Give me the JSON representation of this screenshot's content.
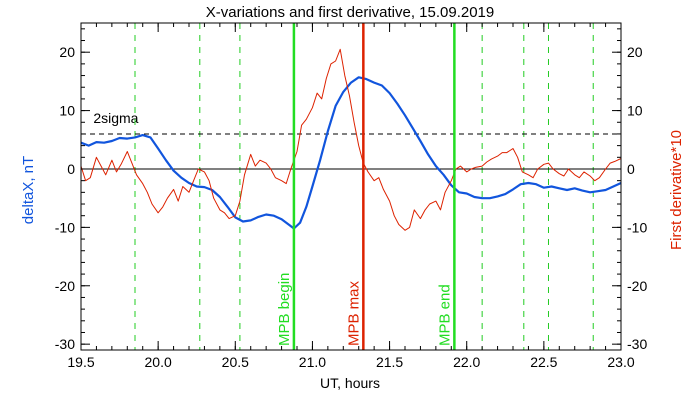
{
  "chart_data": {
    "type": "line",
    "title": "X-variations and first derivative, 15.09.2019",
    "xlabel": "UT, hours",
    "ylabel_left": "deltaX, nT",
    "ylabel_right": "First derivative*10",
    "xlim": [
      19.5,
      23.0
    ],
    "ylim": [
      -31,
      25
    ],
    "x_ticks": [
      "19.5",
      "20.0",
      "20.5",
      "21.0",
      "21.5",
      "22.0",
      "22.5",
      "23.0"
    ],
    "y_ticks": [
      "20",
      "10",
      "0",
      "-10",
      "-20",
      "-30"
    ],
    "sigma_label": "2sigma",
    "sigma_level": 6,
    "zero_level": 0,
    "dashed_verticals": [
      19.85,
      20.27,
      20.53,
      22.1,
      22.37,
      22.53,
      22.82
    ],
    "markers": [
      {
        "label": "MPB begin",
        "x": 20.88,
        "color": "#22dd22"
      },
      {
        "label": "MPB max",
        "x": 21.33,
        "color": "#dd2200"
      },
      {
        "label": "MPB end",
        "x": 21.92,
        "color": "#22dd22"
      }
    ],
    "series": [
      {
        "name": "deltaX, nT",
        "color": "#1155dd",
        "points": [
          [
            19.5,
            4.5
          ],
          [
            19.55,
            4.0
          ],
          [
            19.6,
            4.6
          ],
          [
            19.65,
            4.5
          ],
          [
            19.7,
            4.8
          ],
          [
            19.75,
            5.3
          ],
          [
            19.8,
            5.2
          ],
          [
            19.85,
            5.4
          ],
          [
            19.9,
            5.8
          ],
          [
            19.95,
            5.4
          ],
          [
            20.0,
            3.5
          ],
          [
            20.05,
            1.5
          ],
          [
            20.1,
            -0.3
          ],
          [
            20.15,
            -1.5
          ],
          [
            20.2,
            -2.4
          ],
          [
            20.25,
            -3.0
          ],
          [
            20.3,
            -3.1
          ],
          [
            20.35,
            -3.6
          ],
          [
            20.4,
            -4.8
          ],
          [
            20.45,
            -6.5
          ],
          [
            20.5,
            -8.3
          ],
          [
            20.55,
            -9.0
          ],
          [
            20.6,
            -8.8
          ],
          [
            20.65,
            -8.2
          ],
          [
            20.7,
            -7.8
          ],
          [
            20.75,
            -8.0
          ],
          [
            20.8,
            -8.6
          ],
          [
            20.85,
            -9.6
          ],
          [
            20.88,
            -10.2
          ],
          [
            20.92,
            -9.2
          ],
          [
            20.96,
            -6.5
          ],
          [
            21.0,
            -3.0
          ],
          [
            21.05,
            1.5
          ],
          [
            21.1,
            6.5
          ],
          [
            21.15,
            10.8
          ],
          [
            21.2,
            13.2
          ],
          [
            21.25,
            14.8
          ],
          [
            21.3,
            15.7
          ],
          [
            21.35,
            15.4
          ],
          [
            21.4,
            14.8
          ],
          [
            21.45,
            14.3
          ],
          [
            21.5,
            13.0
          ],
          [
            21.55,
            11.2
          ],
          [
            21.6,
            9.2
          ],
          [
            21.65,
            7.0
          ],
          [
            21.7,
            4.8
          ],
          [
            21.75,
            2.5
          ],
          [
            21.8,
            0.5
          ],
          [
            21.85,
            -1.0
          ],
          [
            21.9,
            -2.8
          ],
          [
            21.95,
            -4.0
          ],
          [
            22.0,
            -4.2
          ],
          [
            22.05,
            -4.8
          ],
          [
            22.1,
            -5.0
          ],
          [
            22.15,
            -5.0
          ],
          [
            22.2,
            -4.7
          ],
          [
            22.25,
            -4.3
          ],
          [
            22.3,
            -3.5
          ],
          [
            22.35,
            -2.6
          ],
          [
            22.4,
            -2.4
          ],
          [
            22.45,
            -2.6
          ],
          [
            22.5,
            -3.2
          ],
          [
            22.55,
            -3.0
          ],
          [
            22.6,
            -3.3
          ],
          [
            22.65,
            -3.6
          ],
          [
            22.7,
            -3.3
          ],
          [
            22.75,
            -3.7
          ],
          [
            22.8,
            -4.0
          ],
          [
            22.85,
            -3.8
          ],
          [
            22.9,
            -3.6
          ],
          [
            22.95,
            -3.0
          ],
          [
            23.0,
            -2.4
          ]
        ]
      },
      {
        "name": "First derivative*10",
        "color": "#dd2200",
        "points": [
          [
            19.5,
            0.5
          ],
          [
            19.53,
            -2.0
          ],
          [
            19.56,
            -1.5
          ],
          [
            19.6,
            2.0
          ],
          [
            19.63,
            0.5
          ],
          [
            19.66,
            -1.0
          ],
          [
            19.7,
            1.5
          ],
          [
            19.73,
            -0.5
          ],
          [
            19.76,
            0.8
          ],
          [
            19.8,
            3.0
          ],
          [
            19.83,
            1.0
          ],
          [
            19.86,
            -1.0
          ],
          [
            19.9,
            -2.5
          ],
          [
            19.93,
            -4.0
          ],
          [
            19.96,
            -6.0
          ],
          [
            20.0,
            -7.5
          ],
          [
            20.03,
            -6.5
          ],
          [
            20.06,
            -5.0
          ],
          [
            20.1,
            -3.5
          ],
          [
            20.13,
            -5.5
          ],
          [
            20.16,
            -3.0
          ],
          [
            20.2,
            -4.0
          ],
          [
            20.23,
            -2.0
          ],
          [
            20.26,
            0.0
          ],
          [
            20.3,
            -0.5
          ],
          [
            20.33,
            -2.0
          ],
          [
            20.36,
            -5.0
          ],
          [
            20.4,
            -7.0
          ],
          [
            20.43,
            -7.5
          ],
          [
            20.46,
            -8.5
          ],
          [
            20.5,
            -8.0
          ],
          [
            20.53,
            -5.5
          ],
          [
            20.56,
            -1.0
          ],
          [
            20.6,
            2.5
          ],
          [
            20.63,
            0.5
          ],
          [
            20.66,
            1.5
          ],
          [
            20.7,
            1.0
          ],
          [
            20.73,
            0.0
          ],
          [
            20.76,
            -1.5
          ],
          [
            20.8,
            -2.0
          ],
          [
            20.83,
            -2.5
          ],
          [
            20.86,
            0.0
          ],
          [
            20.9,
            3.0
          ],
          [
            20.93,
            7.5
          ],
          [
            20.96,
            8.5
          ],
          [
            21.0,
            10.5
          ],
          [
            21.03,
            13.0
          ],
          [
            21.06,
            12.0
          ],
          [
            21.09,
            15.5
          ],
          [
            21.12,
            18.0
          ],
          [
            21.15,
            18.5
          ],
          [
            21.18,
            20.5
          ],
          [
            21.21,
            16.0
          ],
          [
            21.24,
            12.5
          ],
          [
            21.27,
            8.0
          ],
          [
            21.3,
            4.0
          ],
          [
            21.33,
            1.0
          ],
          [
            21.36,
            -0.5
          ],
          [
            21.4,
            -2.0
          ],
          [
            21.43,
            -1.5
          ],
          [
            21.46,
            -3.5
          ],
          [
            21.5,
            -5.5
          ],
          [
            21.53,
            -8.0
          ],
          [
            21.56,
            -9.5
          ],
          [
            21.6,
            -10.5
          ],
          [
            21.63,
            -10.0
          ],
          [
            21.66,
            -7.0
          ],
          [
            21.7,
            -8.5
          ],
          [
            21.73,
            -7.0
          ],
          [
            21.76,
            -6.0
          ],
          [
            21.8,
            -5.5
          ],
          [
            21.83,
            -7.0
          ],
          [
            21.86,
            -4.0
          ],
          [
            21.9,
            -2.0
          ],
          [
            21.93,
            0.0
          ],
          [
            21.96,
            0.5
          ],
          [
            22.0,
            -0.5
          ],
          [
            22.03,
            0.0
          ],
          [
            22.06,
            0.3
          ],
          [
            22.1,
            0.5
          ],
          [
            22.13,
            1.2
          ],
          [
            22.16,
            1.7
          ],
          [
            22.2,
            2.2
          ],
          [
            22.23,
            2.8
          ],
          [
            22.26,
            2.8
          ],
          [
            22.3,
            3.5
          ],
          [
            22.33,
            2.0
          ],
          [
            22.36,
            -0.5
          ],
          [
            22.4,
            -1.0
          ],
          [
            22.43,
            -1.5
          ],
          [
            22.46,
            0.0
          ],
          [
            22.5,
            0.8
          ],
          [
            22.53,
            1.0
          ],
          [
            22.56,
            0.0
          ],
          [
            22.6,
            -0.8
          ],
          [
            22.63,
            -1.2
          ],
          [
            22.66,
            0.0
          ],
          [
            22.7,
            -1.0
          ],
          [
            22.73,
            -1.5
          ],
          [
            22.76,
            -0.5
          ],
          [
            22.8,
            -1.2
          ],
          [
            22.83,
            -2.0
          ],
          [
            22.86,
            -1.5
          ],
          [
            22.9,
            0.0
          ],
          [
            22.93,
            1.0
          ],
          [
            22.96,
            1.3
          ],
          [
            23.0,
            1.8
          ]
        ]
      }
    ],
    "grid": false,
    "legend": "none"
  }
}
